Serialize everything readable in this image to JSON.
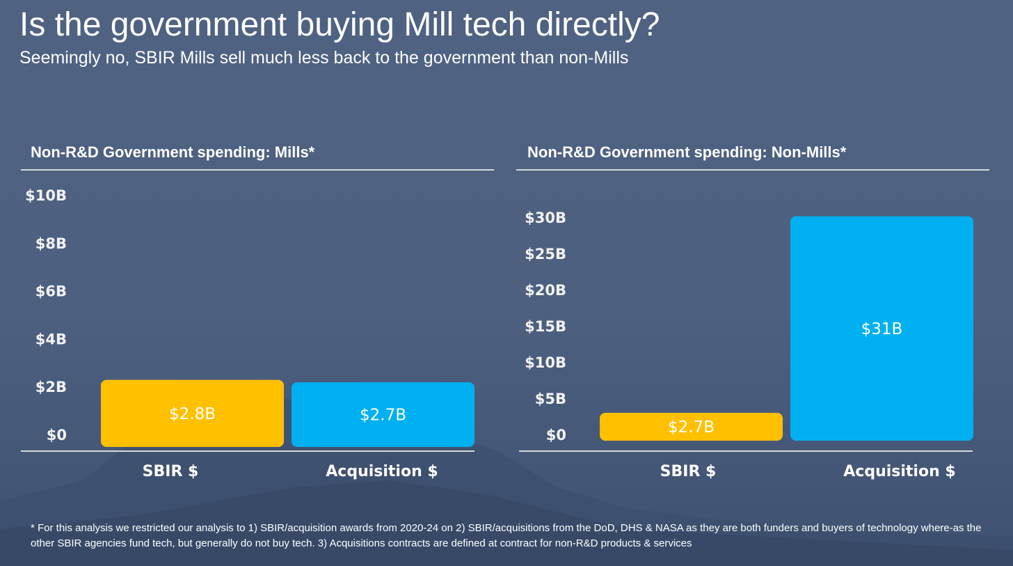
{
  "slide": {
    "title": "Is the government buying Mill tech directly?",
    "subtitle": "Seemingly no, SBIR Mills sell much less back to the government than non-Mills",
    "footnote": "* For this analysis we restricted our analysis to 1) SBIR/acquisition awards from 2020-24 on 2) SBIR/acquisitions from the DoD, DHS & NASA as they are both funders and buyers of technology where-as the other SBIR agencies fund tech, but generally do not buy tech. 3) Acquisitions contracts are defined at contract for non-R&D products & services"
  },
  "colors": {
    "sbir": "#ffc000",
    "acquisition": "#00b0f0",
    "axis": "#d9d9d9"
  },
  "chart_data": [
    {
      "type": "bar",
      "title": "Non-R&D Government spending: Mills*",
      "categories": [
        "SBIR $",
        "Acquisition $"
      ],
      "values": [
        2.8,
        2.7
      ],
      "data_labels": [
        "$2.8B",
        "$2.7B"
      ],
      "unit": "billion USD",
      "ylim": [
        0,
        10
      ],
      "yticks": [
        0,
        2,
        4,
        6,
        8,
        10
      ],
      "ytick_labels": [
        "$0",
        "$2B",
        "$4B",
        "$6B",
        "$8B",
        "$10B"
      ],
      "xlabel": "",
      "ylabel": "",
      "grid": false,
      "colors": [
        "#ffc000",
        "#00b0f0"
      ]
    },
    {
      "type": "bar",
      "title": "Non-R&D Government spending: Non-Mills*",
      "categories": [
        "SBIR $",
        "Acquisition $"
      ],
      "values": [
        2.7,
        31
      ],
      "data_labels": [
        "$2.7B",
        "$31B"
      ],
      "unit": "billion USD",
      "ylim": [
        0,
        32
      ],
      "yticks": [
        0,
        5,
        10,
        15,
        20,
        25,
        30
      ],
      "ytick_labels": [
        "$0",
        "$5B",
        "$10B",
        "$15B",
        "$20B",
        "$25B",
        "$30B"
      ],
      "xlabel": "",
      "ylabel": "",
      "grid": false,
      "colors": [
        "#ffc000",
        "#00b0f0"
      ]
    }
  ]
}
